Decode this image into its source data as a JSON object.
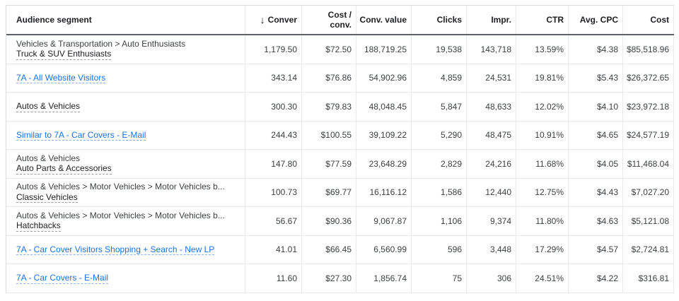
{
  "columns": {
    "segment": "Audience segment",
    "sort_icon": "↓",
    "conversions": "Conver",
    "cost_per_conv_l1": "Cost /",
    "cost_per_conv_l2": "conv.",
    "conv_value": "Conv. value",
    "clicks": "Clicks",
    "impr": "Impr.",
    "ctr": "CTR",
    "avg_cpc": "Avg. CPC",
    "cost": "Cost"
  },
  "rows": [
    {
      "l1": "Vehicles & Transportation > Auto Enthusiasts",
      "l2": "Truck & SUV Enthusiasts",
      "conv": "1,179.50",
      "cpc_conv": "$72.50",
      "value": "188,719.25",
      "clicks": "19,538",
      "impr": "143,718",
      "ctr": "13.59%",
      "avg_cpc": "$4.38",
      "cost": "$85,518.96"
    },
    {
      "link": "7A - All Website Visitors",
      "conv": "343.14",
      "cpc_conv": "$76.86",
      "value": "54,902.96",
      "clicks": "4,859",
      "impr": "24,531",
      "ctr": "19.81%",
      "avg_cpc": "$5.43",
      "cost": "$26,372.65"
    },
    {
      "plain": "Autos & Vehicles",
      "conv": "300.30",
      "cpc_conv": "$79.83",
      "value": "48,048.45",
      "clicks": "5,847",
      "impr": "48,633",
      "ctr": "12.02%",
      "avg_cpc": "$4.10",
      "cost": "$23,972.18"
    },
    {
      "link": "Similar to 7A - Car Covers - E-Mail",
      "conv": "244.43",
      "cpc_conv": "$100.55",
      "value": "39,109.22",
      "clicks": "5,290",
      "impr": "48,475",
      "ctr": "10.91%",
      "avg_cpc": "$4.65",
      "cost": "$24,577.19"
    },
    {
      "l1": "Autos & Vehicles",
      "l2": "Auto Parts & Accessories",
      "conv": "147.80",
      "cpc_conv": "$77.59",
      "value": "23,648.29",
      "clicks": "2,829",
      "impr": "24,216",
      "ctr": "11.68%",
      "avg_cpc": "$4.05",
      "cost": "$11,468.04"
    },
    {
      "l1": "Autos & Vehicles > Motor Vehicles > Motor Vehicles b...",
      "l2": "Classic Vehicles",
      "conv": "100.73",
      "cpc_conv": "$69.77",
      "value": "16,116.12",
      "clicks": "1,586",
      "impr": "12,440",
      "ctr": "12.75%",
      "avg_cpc": "$4.43",
      "cost": "$7,027.20"
    },
    {
      "l1": "Autos & Vehicles > Motor Vehicles > Motor Vehicles b...",
      "l2": "Hatchbacks",
      "conv": "56.67",
      "cpc_conv": "$90.36",
      "value": "9,067.87",
      "clicks": "1,106",
      "impr": "9,374",
      "ctr": "11.80%",
      "avg_cpc": "$4.63",
      "cost": "$5,121.08"
    },
    {
      "link": "7A - Car Cover Visitors Shopping + Search - New LP",
      "conv": "41.01",
      "cpc_conv": "$66.45",
      "value": "6,560.99",
      "clicks": "596",
      "impr": "3,448",
      "ctr": "17.29%",
      "avg_cpc": "$4.57",
      "cost": "$2,724.81"
    },
    {
      "link": "7A - Car Covers - E-Mail",
      "conv": "11.60",
      "cpc_conv": "$27.30",
      "value": "1,856.74",
      "clicks": "75",
      "impr": "306",
      "ctr": "24.51%",
      "avg_cpc": "$4.22",
      "cost": "$316.81"
    }
  ]
}
